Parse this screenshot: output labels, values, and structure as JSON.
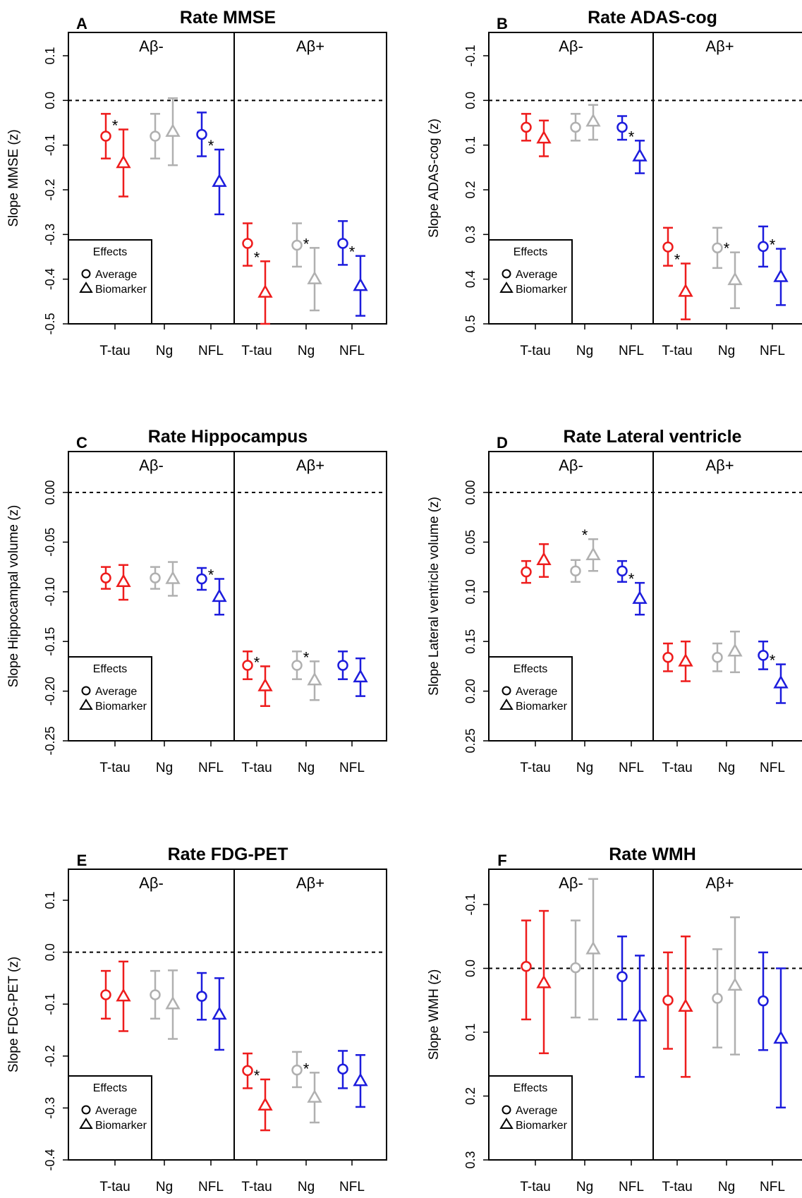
{
  "legend": {
    "title": "Effects",
    "items": [
      "Average",
      "Biomarker"
    ]
  },
  "groups": [
    "Aβ-",
    "Aβ+"
  ],
  "categories": [
    "T-tau",
    "Ng",
    "NFL"
  ],
  "colors": {
    "T-tau": "#ee1c1c",
    "Ng": "#b0b0b0",
    "NFL": "#1c1cdd"
  },
  "chart_data": [
    {
      "letter": "A",
      "title": "Rate MMSE",
      "ylabel": "Slope MMSE (z)",
      "type": "scatter",
      "ylim": [
        0.1,
        -0.5
      ],
      "reversed": false,
      "ticks": [
        "0.1",
        "0.0",
        "-0.1",
        "-0.2",
        "-0.3",
        "-0.4",
        "-0.5"
      ],
      "points": [
        {
          "group": "Aβ-",
          "category": "T-tau",
          "average": [
            -0.08,
            -0.13,
            -0.03
          ],
          "biomarker": [
            -0.14,
            -0.215,
            -0.065
          ],
          "star": true
        },
        {
          "group": "Aβ-",
          "category": "Ng",
          "average": [
            -0.08,
            -0.13,
            -0.03
          ],
          "biomarker": [
            -0.07,
            -0.145,
            0.005
          ],
          "star": false
        },
        {
          "group": "Aβ-",
          "category": "NFL",
          "average": [
            -0.076,
            -0.125,
            -0.027
          ],
          "biomarker": [
            -0.182,
            -0.255,
            -0.11
          ],
          "star": true
        },
        {
          "group": "Aβ+",
          "category": "T-tau",
          "average": [
            -0.32,
            -0.37,
            -0.275
          ],
          "biomarker": [
            -0.43,
            -0.5,
            -0.36
          ],
          "star": true
        },
        {
          "group": "Aβ+",
          "category": "Ng",
          "average": [
            -0.324,
            -0.372,
            -0.275
          ],
          "biomarker": [
            -0.4,
            -0.47,
            -0.33
          ],
          "star": true
        },
        {
          "group": "Aβ+",
          "category": "NFL",
          "average": [
            -0.32,
            -0.368,
            -0.27
          ],
          "biomarker": [
            -0.415,
            -0.482,
            -0.348
          ],
          "star": true
        }
      ]
    },
    {
      "letter": "B",
      "title": "Rate ADAS-cog",
      "ylabel": "Slope ADAS-cog (z)",
      "type": "scatter",
      "ylim": [
        -0.1,
        0.5
      ],
      "reversed": true,
      "ticks": [
        "-0.1",
        "0.0",
        "0.1",
        "0.2",
        "0.3",
        "0.4",
        "0.5"
      ],
      "points": [
        {
          "group": "Aβ-",
          "category": "T-tau",
          "average": [
            0.06,
            0.03,
            0.09
          ],
          "biomarker": [
            0.085,
            0.045,
            0.125
          ],
          "star": false
        },
        {
          "group": "Aβ-",
          "category": "Ng",
          "average": [
            0.06,
            0.03,
            0.09
          ],
          "biomarker": [
            0.047,
            0.01,
            0.088
          ],
          "star": false
        },
        {
          "group": "Aβ-",
          "category": "NFL",
          "average": [
            0.06,
            0.035,
            0.088
          ],
          "biomarker": [
            0.125,
            0.09,
            0.163
          ],
          "star": true
        },
        {
          "group": "Aβ+",
          "category": "T-tau",
          "average": [
            0.328,
            0.285,
            0.37
          ],
          "biomarker": [
            0.428,
            0.365,
            0.49
          ],
          "star": true
        },
        {
          "group": "Aβ+",
          "category": "Ng",
          "average": [
            0.33,
            0.285,
            0.375
          ],
          "biomarker": [
            0.402,
            0.34,
            0.465
          ],
          "star": true
        },
        {
          "group": "Aβ+",
          "category": "NFL",
          "average": [
            0.327,
            0.282,
            0.372
          ],
          "biomarker": [
            0.395,
            0.332,
            0.458
          ],
          "star": true
        }
      ]
    },
    {
      "letter": "C",
      "title": "Rate Hippocampus",
      "ylabel": "Slope Hippocampal volume (z)",
      "type": "scatter",
      "ylim": [
        0.025,
        -0.255
      ],
      "reversed": false,
      "ticks": [
        "0.00",
        "-0.05",
        "-0.10",
        "-0.15",
        "-0.20",
        "-0.25"
      ],
      "tick_values": [
        0.0,
        -0.05,
        -0.1,
        -0.15,
        -0.2,
        -0.25
      ],
      "points": [
        {
          "group": "Aβ-",
          "category": "T-tau",
          "average": [
            -0.086,
            -0.097,
            -0.075
          ],
          "biomarker": [
            -0.09,
            -0.108,
            -0.073
          ],
          "star": false
        },
        {
          "group": "Aβ-",
          "category": "Ng",
          "average": [
            -0.086,
            -0.097,
            -0.075
          ],
          "biomarker": [
            -0.087,
            -0.104,
            -0.07
          ],
          "star": false
        },
        {
          "group": "Aβ-",
          "category": "NFL",
          "average": [
            -0.087,
            -0.098,
            -0.076
          ],
          "biomarker": [
            -0.105,
            -0.123,
            -0.087
          ],
          "star": true
        },
        {
          "group": "Aβ+",
          "category": "T-tau",
          "average": [
            -0.174,
            -0.188,
            -0.16
          ],
          "biomarker": [
            -0.195,
            -0.215,
            -0.175
          ],
          "star": true
        },
        {
          "group": "Aβ+",
          "category": "Ng",
          "average": [
            -0.174,
            -0.188,
            -0.16
          ],
          "biomarker": [
            -0.189,
            -0.209,
            -0.17
          ],
          "star": true
        },
        {
          "group": "Aβ+",
          "category": "NFL",
          "average": [
            -0.174,
            -0.188,
            -0.16
          ],
          "biomarker": [
            -0.186,
            -0.205,
            -0.167
          ],
          "star": false
        }
      ]
    },
    {
      "letter": "D",
      "title": "Rate Lateral ventricle",
      "ylabel": "Slope Lateral ventricle volume (z)",
      "type": "scatter",
      "ylim": [
        -0.025,
        0.255
      ],
      "reversed": true,
      "ticks": [
        "0.00",
        "0.05",
        "0.10",
        "0.15",
        "0.20",
        "0.25"
      ],
      "tick_values": [
        0.0,
        0.05,
        0.1,
        0.15,
        0.2,
        0.25
      ],
      "points": [
        {
          "group": "Aβ-",
          "category": "T-tau",
          "average": [
            0.08,
            0.069,
            0.091
          ],
          "biomarker": [
            0.068,
            0.052,
            0.085
          ],
          "star": false
        },
        {
          "group": "Aβ-",
          "category": "Ng",
          "average": [
            0.079,
            0.068,
            0.09
          ],
          "biomarker": [
            0.063,
            0.047,
            0.079
          ],
          "star": true
        },
        {
          "group": "Aβ-",
          "category": "NFL",
          "average": [
            0.079,
            0.069,
            0.09
          ],
          "biomarker": [
            0.107,
            0.091,
            0.123
          ],
          "star": true
        },
        {
          "group": "Aβ+",
          "category": "T-tau",
          "average": [
            0.166,
            0.152,
            0.18
          ],
          "biomarker": [
            0.17,
            0.15,
            0.19
          ],
          "star": false
        },
        {
          "group": "Aβ+",
          "category": "Ng",
          "average": [
            0.166,
            0.152,
            0.18
          ],
          "biomarker": [
            0.16,
            0.14,
            0.181
          ],
          "star": false
        },
        {
          "group": "Aβ+",
          "category": "NFL",
          "average": [
            0.164,
            0.15,
            0.178
          ],
          "biomarker": [
            0.192,
            0.173,
            0.212
          ],
          "star": true
        }
      ]
    },
    {
      "letter": "E",
      "title": "Rate FDG-PET",
      "ylabel": "Slope FDG-PET (z)",
      "type": "scatter",
      "ylim": [
        0.15,
        -0.4
      ],
      "reversed": false,
      "ticks": [
        "0.1",
        "0.0",
        "-0.1",
        "-0.2",
        "-0.3",
        "-0.4"
      ],
      "tick_values": [
        0.1,
        0.0,
        -0.1,
        -0.2,
        -0.3,
        -0.4
      ],
      "points": [
        {
          "group": "Aβ-",
          "category": "T-tau",
          "average": [
            -0.082,
            -0.128,
            -0.036
          ],
          "biomarker": [
            -0.085,
            -0.152,
            -0.018
          ],
          "star": false
        },
        {
          "group": "Aβ-",
          "category": "Ng",
          "average": [
            -0.082,
            -0.128,
            -0.036
          ],
          "biomarker": [
            -0.1,
            -0.167,
            -0.035
          ],
          "star": false
        },
        {
          "group": "Aβ-",
          "category": "NFL",
          "average": [
            -0.085,
            -0.13,
            -0.04
          ],
          "biomarker": [
            -0.12,
            -0.188,
            -0.05
          ],
          "star": false
        },
        {
          "group": "Aβ+",
          "category": "T-tau",
          "average": [
            -0.228,
            -0.262,
            -0.195
          ],
          "biomarker": [
            -0.295,
            -0.343,
            -0.245
          ],
          "star": true
        },
        {
          "group": "Aβ+",
          "category": "Ng",
          "average": [
            -0.227,
            -0.26,
            -0.192
          ],
          "biomarker": [
            -0.28,
            -0.328,
            -0.232
          ],
          "star": true
        },
        {
          "group": "Aβ+",
          "category": "NFL",
          "average": [
            -0.225,
            -0.262,
            -0.19
          ],
          "biomarker": [
            -0.248,
            -0.298,
            -0.198
          ],
          "star": false
        }
      ]
    },
    {
      "letter": "F",
      "title": "Rate WMH",
      "ylabel": "Slope WMH (z)",
      "type": "scatter",
      "ylim": [
        -0.15,
        0.3
      ],
      "reversed": true,
      "ticks": [
        "-0.1",
        "0.0",
        "0.1",
        "0.2",
        "0.3"
      ],
      "tick_values": [
        -0.1,
        0.0,
        0.1,
        0.2,
        0.3
      ],
      "points": [
        {
          "group": "Aβ-",
          "category": "T-tau",
          "average": [
            -0.003,
            -0.075,
            0.08
          ],
          "biomarker": [
            0.023,
            -0.09,
            0.133
          ],
          "star": false
        },
        {
          "group": "Aβ-",
          "category": "Ng",
          "average": [
            -0.001,
            -0.075,
            0.077
          ],
          "biomarker": [
            -0.03,
            -0.14,
            0.08
          ],
          "star": false
        },
        {
          "group": "Aβ-",
          "category": "NFL",
          "average": [
            0.013,
            -0.05,
            0.08
          ],
          "biomarker": [
            0.075,
            -0.02,
            0.17
          ],
          "star": false
        },
        {
          "group": "Aβ+",
          "category": "T-tau",
          "average": [
            0.05,
            -0.025,
            0.126
          ],
          "biomarker": [
            0.06,
            -0.05,
            0.17
          ],
          "star": false
        },
        {
          "group": "Aβ+",
          "category": "Ng",
          "average": [
            0.047,
            -0.03,
            0.124
          ],
          "biomarker": [
            0.027,
            -0.08,
            0.135
          ],
          "star": false
        },
        {
          "group": "Aβ+",
          "category": "NFL",
          "average": [
            0.051,
            -0.025,
            0.128
          ],
          "biomarker": [
            0.11,
            0.0,
            0.218
          ],
          "star": false
        }
      ]
    }
  ]
}
